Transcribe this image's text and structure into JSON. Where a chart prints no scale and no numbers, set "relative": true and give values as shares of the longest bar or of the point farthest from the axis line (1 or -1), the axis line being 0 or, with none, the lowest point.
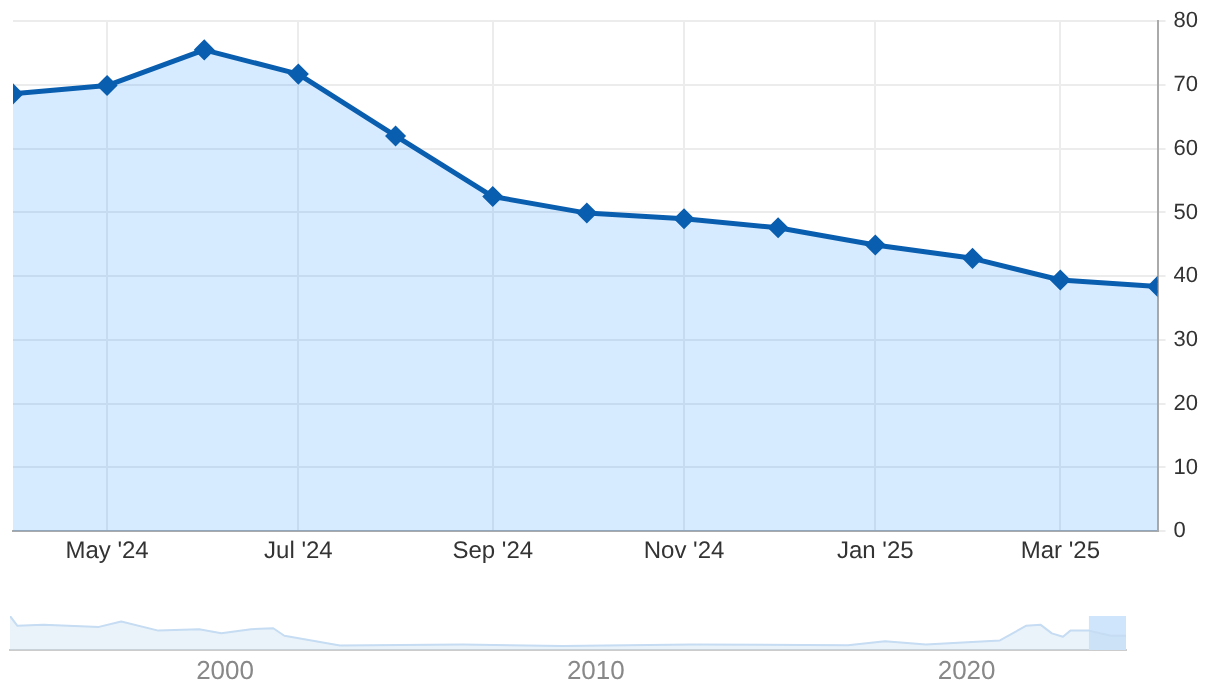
{
  "chart_data": [
    {
      "type": "area",
      "x": [
        "2024-04-01",
        "2024-05-01",
        "2024-06-01",
        "2024-07-01",
        "2024-08-01",
        "2024-09-01",
        "2024-10-01",
        "2024-11-01",
        "2024-12-01",
        "2025-01-01",
        "2025-02-01",
        "2025-03-01",
        "2025-04-01"
      ],
      "series": [
        {
          "color": "#0a5eb0",
          "values": [
            68.6,
            69.9,
            75.5,
            71.7,
            62.0,
            52.5,
            49.9,
            49.0,
            47.6,
            44.9,
            42.8,
            39.4,
            38.4
          ]
        }
      ],
      "xlim": [
        "2024-04-01",
        "2025-04-01"
      ],
      "xticks": [
        {
          "value": "2024-05-01",
          "label": "May '24"
        },
        {
          "value": "2024-07-01",
          "label": "Jul '24"
        },
        {
          "value": "2024-09-01",
          "label": "Sep '24"
        },
        {
          "value": "2024-11-01",
          "label": "Nov '24"
        },
        {
          "value": "2025-01-01",
          "label": "Jan '25"
        },
        {
          "value": "2025-03-01",
          "label": "Mar '25"
        }
      ],
      "ylim": [
        0,
        80
      ],
      "yticks": [
        0,
        10,
        20,
        30,
        40,
        50,
        60,
        70,
        80
      ],
      "grid": true,
      "legend": false,
      "marker": "diamond"
    },
    {
      "type": "area",
      "relative": true,
      "tick_labels": "x",
      "x": [
        1994.2,
        1994.4,
        1995.1,
        1996.6,
        1997.2,
        1998.2,
        1999.3,
        1999.9,
        2000.7,
        2001.3,
        2001.6,
        2003.1,
        2006.4,
        2009.1,
        2012.6,
        2016.8,
        2017.8,
        2018.9,
        2020.9,
        2021.6,
        2022.0,
        2022.3,
        2022.6,
        2022.8,
        2023.3,
        2023.6,
        2023.9,
        2024.3
      ],
      "series": [
        {
          "color": "#c5dcf2",
          "values": [
            1.0,
            0.71,
            0.74,
            0.68,
            0.84,
            0.57,
            0.61,
            0.49,
            0.61,
            0.64,
            0.42,
            0.13,
            0.16,
            0.12,
            0.16,
            0.14,
            0.26,
            0.16,
            0.28,
            0.71,
            0.74,
            0.49,
            0.39,
            0.57,
            0.57,
            0.49,
            0.42,
            0.42
          ]
        }
      ],
      "xlim": [
        1994.2,
        2024.3
      ],
      "xticks": [
        2000,
        2010,
        2020
      ],
      "legend": false,
      "marker": "none",
      "bands": [
        {
          "axis": "x",
          "from": 2023.3,
          "to": 2024.3,
          "color": "#cfe5fb"
        }
      ]
    }
  ]
}
